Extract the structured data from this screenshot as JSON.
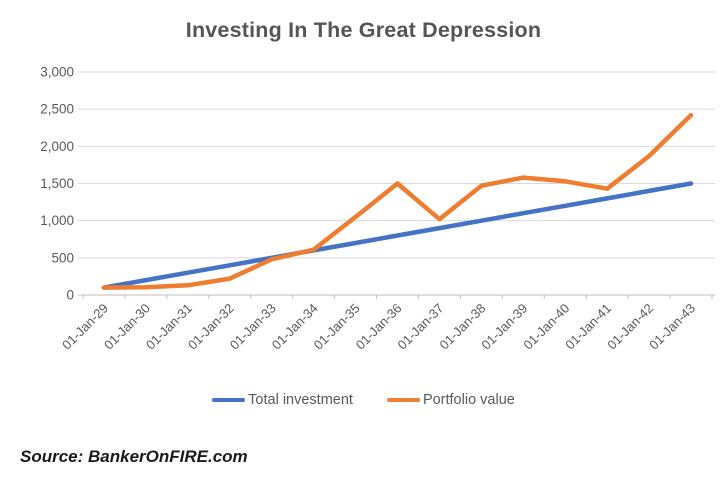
{
  "chart_data": {
    "type": "line",
    "title": "Investing In The Great Depression",
    "categories": [
      "01-Jan-29",
      "01-Jan-30",
      "01-Jan-31",
      "01-Jan-32",
      "01-Jan-33",
      "01-Jan-34",
      "01-Jan-35",
      "01-Jan-36",
      "01-Jan-37",
      "01-Jan-38",
      "01-Jan-39",
      "01-Jan-40",
      "01-Jan-41",
      "01-Jan-42",
      "01-Jan-43"
    ],
    "series": [
      {
        "name": "Total investment",
        "color": "#4472C4",
        "values": [
          100,
          200,
          300,
          400,
          500,
          600,
          700,
          800,
          900,
          1000,
          1100,
          1200,
          1300,
          1400,
          1500
        ]
      },
      {
        "name": "Portfolio value",
        "color": "#ED7D31",
        "values": [
          100,
          105,
          130,
          220,
          480,
          610,
          1050,
          1500,
          1020,
          1470,
          1580,
          1530,
          1430,
          1870,
          2420
        ]
      }
    ],
    "xlabel": "",
    "ylabel": "",
    "ylim": [
      0,
      3000
    ],
    "ytick_step": 500,
    "ytick_labels": [
      "0",
      "500",
      "1,000",
      "1,500",
      "2,000",
      "2,500",
      "3,000"
    ],
    "grid": "horizontal",
    "legend_position": "bottom",
    "gridline_color": "#D9D9D9",
    "axis_color": "#BFBFBF",
    "text_color": "#595959"
  },
  "source": {
    "text": "Source: BankerOnFIRE.com"
  }
}
